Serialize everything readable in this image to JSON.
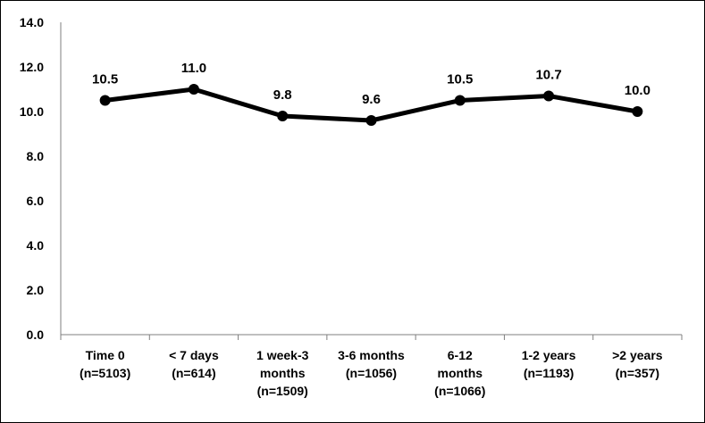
{
  "chart_data": {
    "type": "line",
    "categories": [
      [
        "Time 0",
        "(n=5103)"
      ],
      [
        "< 7 days",
        "(n=614)"
      ],
      [
        "1 week-3",
        "months",
        "(n=1509)"
      ],
      [
        "3-6 months",
        "(n=1056)"
      ],
      [
        "6-12",
        "months",
        "(n=1066)"
      ],
      [
        "1-2 years",
        "(n=1193)"
      ],
      [
        ">2 years",
        "(n=357)"
      ]
    ],
    "values": [
      10.5,
      11.0,
      9.8,
      9.6,
      10.5,
      10.7,
      10.0
    ],
    "data_labels": [
      "10.5",
      "11.0",
      "9.8",
      "9.6",
      "10.5",
      "10.7",
      "10.0"
    ],
    "ylim": [
      0,
      14
    ],
    "yticks": [
      0,
      2,
      4,
      6,
      8,
      10,
      12,
      14
    ],
    "ytick_labels": [
      "0.0",
      "2.0",
      "4.0",
      "6.0",
      "8.0",
      "10.0",
      "12.0",
      "14.0"
    ],
    "title": "",
    "xlabel": "",
    "ylabel": "",
    "grid": false,
    "line_color": "#000000"
  }
}
